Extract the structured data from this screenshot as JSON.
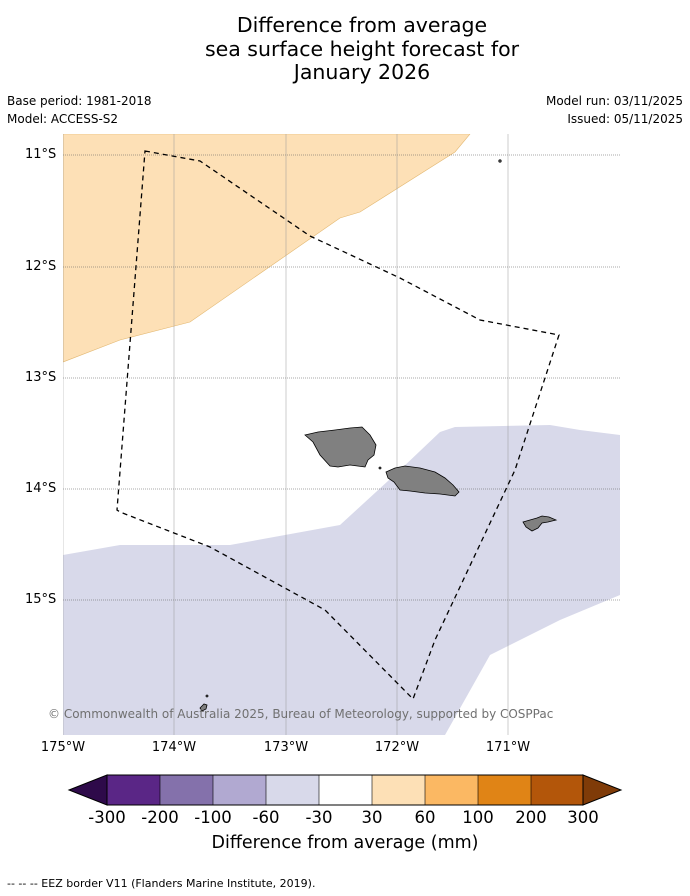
{
  "title": {
    "line1": "Difference from average",
    "line2": "sea surface height forecast for",
    "line3": "January 2026"
  },
  "meta": {
    "base_period": "Base period: 1981-2018",
    "model": "Model: ACCESS-S2",
    "model_run": "Model run: 03/11/2025",
    "issued": "Issued: 05/11/2025"
  },
  "map": {
    "latitude_labels": [
      "11°S",
      "12°S",
      "13°S",
      "14°S",
      "15°S"
    ],
    "longitude_labels": [
      "175°W",
      "174°W",
      "173°W",
      "172°W",
      "171°W"
    ],
    "copyright": "© Commonwealth of Australia 2025, Bureau of Meteorology, supported by COSPPac",
    "colors": {
      "positive_30_60": "#fde0b6",
      "negative_60_30": "#d8d9ea",
      "land": "#808080",
      "eez_line": "#000000"
    }
  },
  "colorbar": {
    "title": "Difference from average (mm)",
    "tick_labels": [
      "-300",
      "-200",
      "-100",
      "-60",
      "-30",
      "30",
      "60",
      "100",
      "200",
      "300"
    ],
    "bins": [
      {
        "from": "-200",
        "to": "-300",
        "color": "#5a2686"
      },
      {
        "from": "-200",
        "to": "-100",
        "color": "#8471ab"
      },
      {
        "from": "-100",
        "to": "-60",
        "color": "#b1a9d1"
      },
      {
        "from": "-60",
        "to": "-30",
        "color": "#d8d9ea"
      },
      {
        "from": "-30",
        "to": "30",
        "color": "#ffffff"
      },
      {
        "from": "30",
        "to": "60",
        "color": "#fde0b6"
      },
      {
        "from": "60",
        "to": "100",
        "color": "#fbb863"
      },
      {
        "from": "100",
        "to": "200",
        "color": "#e08416"
      },
      {
        "from": "200",
        "to": "300",
        "color": "#b3560a"
      }
    ],
    "extend_low_color": "#2e0a4a",
    "extend_high_color": "#7f3b08"
  },
  "footnote": "--  --  -- EEZ border V11 (Flanders Marine Institute, 2019)."
}
